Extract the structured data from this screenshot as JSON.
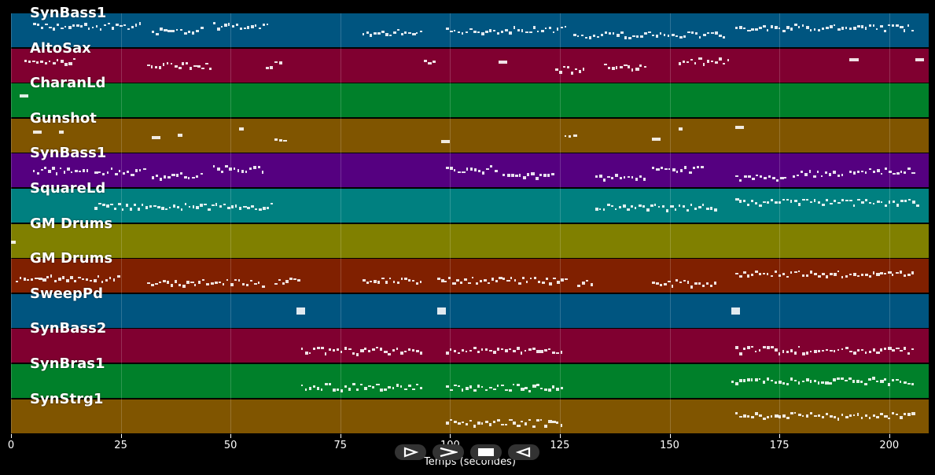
{
  "chart_data": {
    "type": "piano-roll",
    "xlabel": "Temps (secondes)",
    "xlim": [
      0,
      209
    ],
    "xticks": [
      0,
      25,
      50,
      75,
      100,
      125,
      150,
      175,
      200
    ],
    "tracks": [
      {
        "name": "SynBass1",
        "color": "#005580",
        "segments": [
          [
            5,
            30
          ],
          [
            32,
            44
          ],
          [
            46,
            59
          ],
          [
            80,
            94
          ],
          [
            99,
            127
          ],
          [
            128,
            163
          ],
          [
            165,
            206
          ]
        ]
      },
      {
        "name": "AltoSax",
        "color": "#800030",
        "segments": [
          [
            3,
            15
          ],
          [
            31,
            46
          ],
          [
            58,
            62
          ],
          [
            94,
            97
          ],
          [
            111,
            113
          ],
          [
            124,
            131
          ],
          [
            135,
            145
          ],
          [
            152,
            164
          ],
          [
            191,
            193
          ],
          [
            206,
            208
          ]
        ]
      },
      {
        "name": "CharanLd",
        "color": "#00802a",
        "segments": [
          [
            2,
            4
          ]
        ]
      },
      {
        "name": "Gunshot",
        "color": "#805500",
        "segments": [
          [
            5,
            7
          ],
          [
            11,
            12
          ],
          [
            32,
            34
          ],
          [
            38,
            39
          ],
          [
            52,
            53
          ],
          [
            60,
            63
          ],
          [
            98,
            100
          ],
          [
            126,
            129
          ],
          [
            146,
            148
          ],
          [
            152,
            153
          ],
          [
            165,
            167
          ]
        ]
      },
      {
        "name": "SynBass1",
        "color": "#550080",
        "segments": [
          [
            5,
            18
          ],
          [
            19,
            31
          ],
          [
            32,
            44
          ],
          [
            46,
            58
          ],
          [
            99,
            111
          ],
          [
            112,
            124
          ],
          [
            133,
            145
          ],
          [
            146,
            158
          ],
          [
            165,
            177
          ],
          [
            178,
            190
          ],
          [
            191,
            206
          ]
        ]
      },
      {
        "name": "SquareLd",
        "color": "#008080",
        "segments": [
          [
            19,
            60
          ],
          [
            133,
            161
          ],
          [
            165,
            207
          ]
        ]
      },
      {
        "name": "GM Drums",
        "color": "#808000",
        "segments": [
          [
            0,
            1
          ]
        ]
      },
      {
        "name": "GM Drums",
        "color": "#802000",
        "segments": [
          [
            1,
            25
          ],
          [
            31,
            58
          ],
          [
            60,
            66
          ],
          [
            80,
            94
          ],
          [
            97,
            127
          ],
          [
            129,
            133
          ],
          [
            146,
            161
          ],
          [
            165,
            206
          ]
        ]
      },
      {
        "name": "SweepPd",
        "color": "#005580",
        "segments": [
          [
            65,
            67
          ],
          [
            97,
            99
          ],
          [
            164,
            166
          ]
        ]
      },
      {
        "name": "SynBass2",
        "color": "#800030",
        "segments": [
          [
            66,
            94
          ],
          [
            99,
            126
          ],
          [
            165,
            206
          ]
        ]
      },
      {
        "name": "SynBras1",
        "color": "#00802a",
        "segments": [
          [
            66,
            94
          ],
          [
            99,
            126
          ],
          [
            164,
            206
          ]
        ]
      },
      {
        "name": "SynStrg1",
        "color": "#805500",
        "segments": [
          [
            99,
            126
          ],
          [
            165,
            206
          ]
        ]
      }
    ]
  },
  "controls": {
    "play_icon": "play-icon",
    "forward_icon": "fast-forward-icon",
    "stop_icon": "stop-icon",
    "rewind_icon": "rewind-icon"
  }
}
